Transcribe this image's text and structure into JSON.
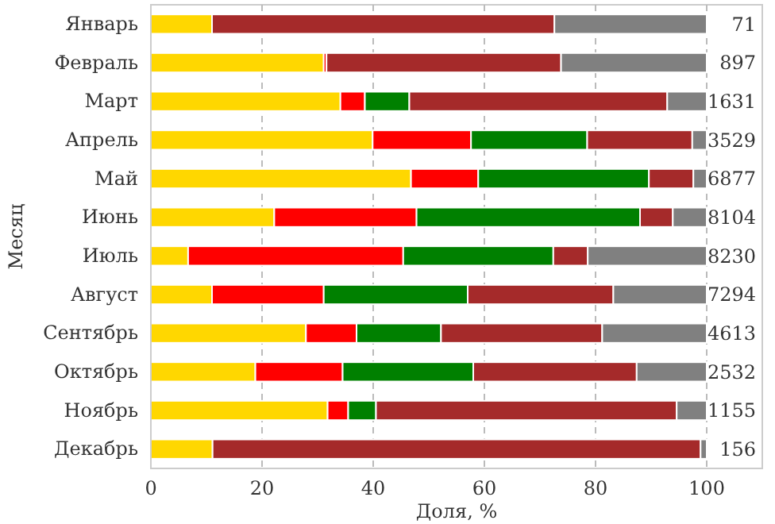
{
  "chart_data": {
    "type": "bar",
    "orientation": "horizontal",
    "stacked": true,
    "xlabel": "Доля, %",
    "ylabel": "Месяц",
    "categories": [
      "Январь",
      "Февраль",
      "Март",
      "Апрель",
      "Май",
      "Июнь",
      "Июль",
      "Август",
      "Сентябрь",
      "Октябрь",
      "Ноябрь",
      "Декабрь"
    ],
    "series": [
      {
        "color": "#ffd700",
        "values": [
          11,
          31.1,
          34.1,
          39.9,
          46.8,
          22.2,
          6.7,
          11,
          27.9,
          18.8,
          31.8,
          11.1
        ]
      },
      {
        "color": "#ff0000",
        "values": [
          0,
          0.5,
          4.4,
          17.7,
          12.1,
          25.6,
          38.7,
          20.1,
          9.1,
          15.7,
          3.7,
          0
        ]
      },
      {
        "color": "#008000",
        "values": [
          0,
          0,
          8,
          20.9,
          30.7,
          40.2,
          27,
          25.9,
          15.2,
          23.5,
          5,
          0
        ]
      },
      {
        "color": "#a52a2a",
        "values": [
          61.6,
          42.2,
          46.4,
          18.9,
          8,
          5.9,
          6.2,
          26.2,
          29,
          29.4,
          54.1,
          87.8
        ]
      },
      {
        "color": "#808080",
        "values": [
          27.4,
          26.2,
          7.1,
          2.6,
          2.4,
          6.1,
          21.4,
          16.8,
          18.8,
          12.6,
          5.4,
          1.1
        ]
      }
    ],
    "annotations": [
      "71",
      "897",
      "1631",
      "3529",
      "6877",
      "8104",
      "8230",
      "7294",
      "4613",
      "2532",
      "1155",
      "156"
    ],
    "xlim": [
      0,
      110
    ],
    "xticks": [
      0,
      20,
      40,
      60,
      80,
      100
    ],
    "grid": "x"
  }
}
